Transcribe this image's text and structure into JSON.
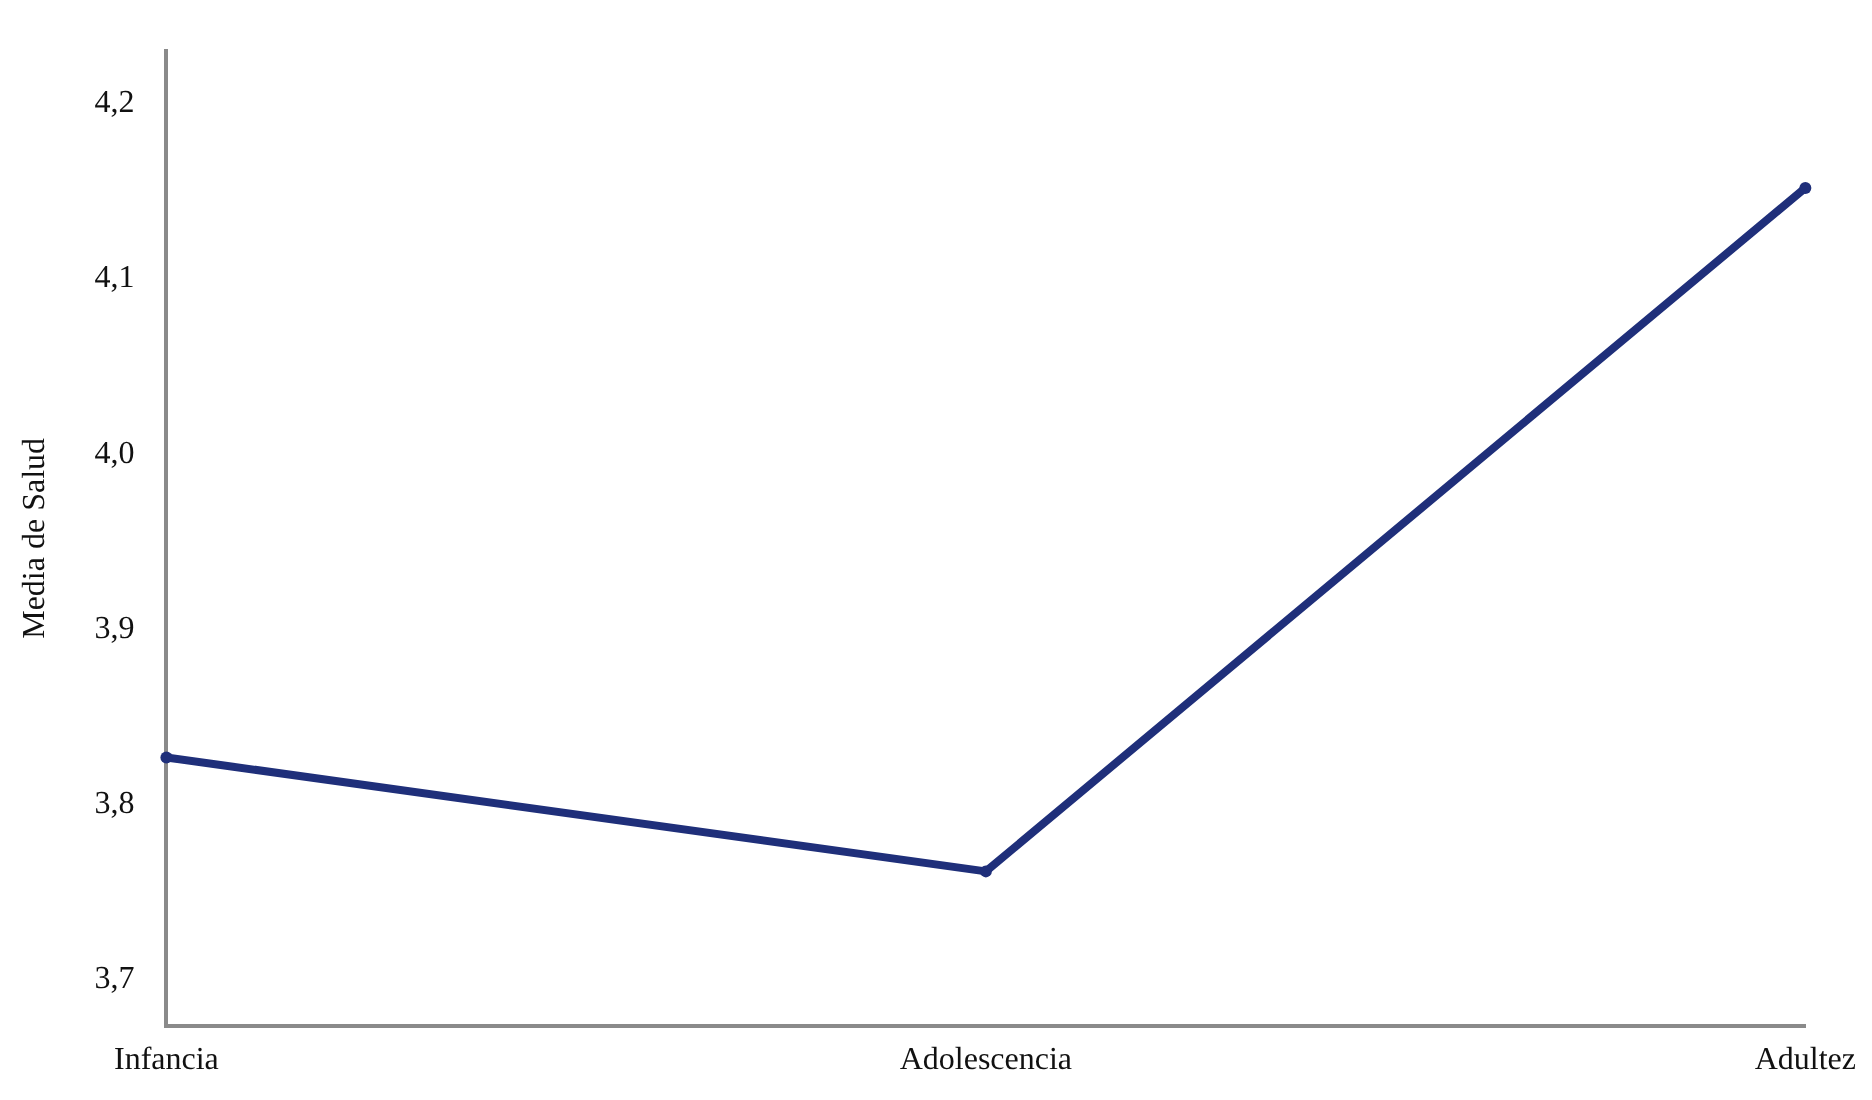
{
  "chart_data": {
    "type": "line",
    "ylabel": "Media de Salud",
    "categories": [
      "Infancia",
      "Adolescencia",
      "Adultez"
    ],
    "series": [
      {
        "color": "#1f2f7a",
        "values": [
          3.827,
          3.762,
          4.152
        ]
      }
    ],
    "ylim": [
      3.674,
      4.23
    ],
    "yticks": [
      {
        "value": 3.7,
        "label": "3,7"
      },
      {
        "value": 3.8,
        "label": "3,8"
      },
      {
        "value": 3.9,
        "label": "3,9"
      },
      {
        "value": 4.0,
        "label": "4,0"
      },
      {
        "value": 4.1,
        "label": "4,1"
      },
      {
        "value": 4.2,
        "label": "4,2"
      }
    ],
    "grid": false,
    "legend": false,
    "marker": "circle",
    "line_style": "solid"
  }
}
